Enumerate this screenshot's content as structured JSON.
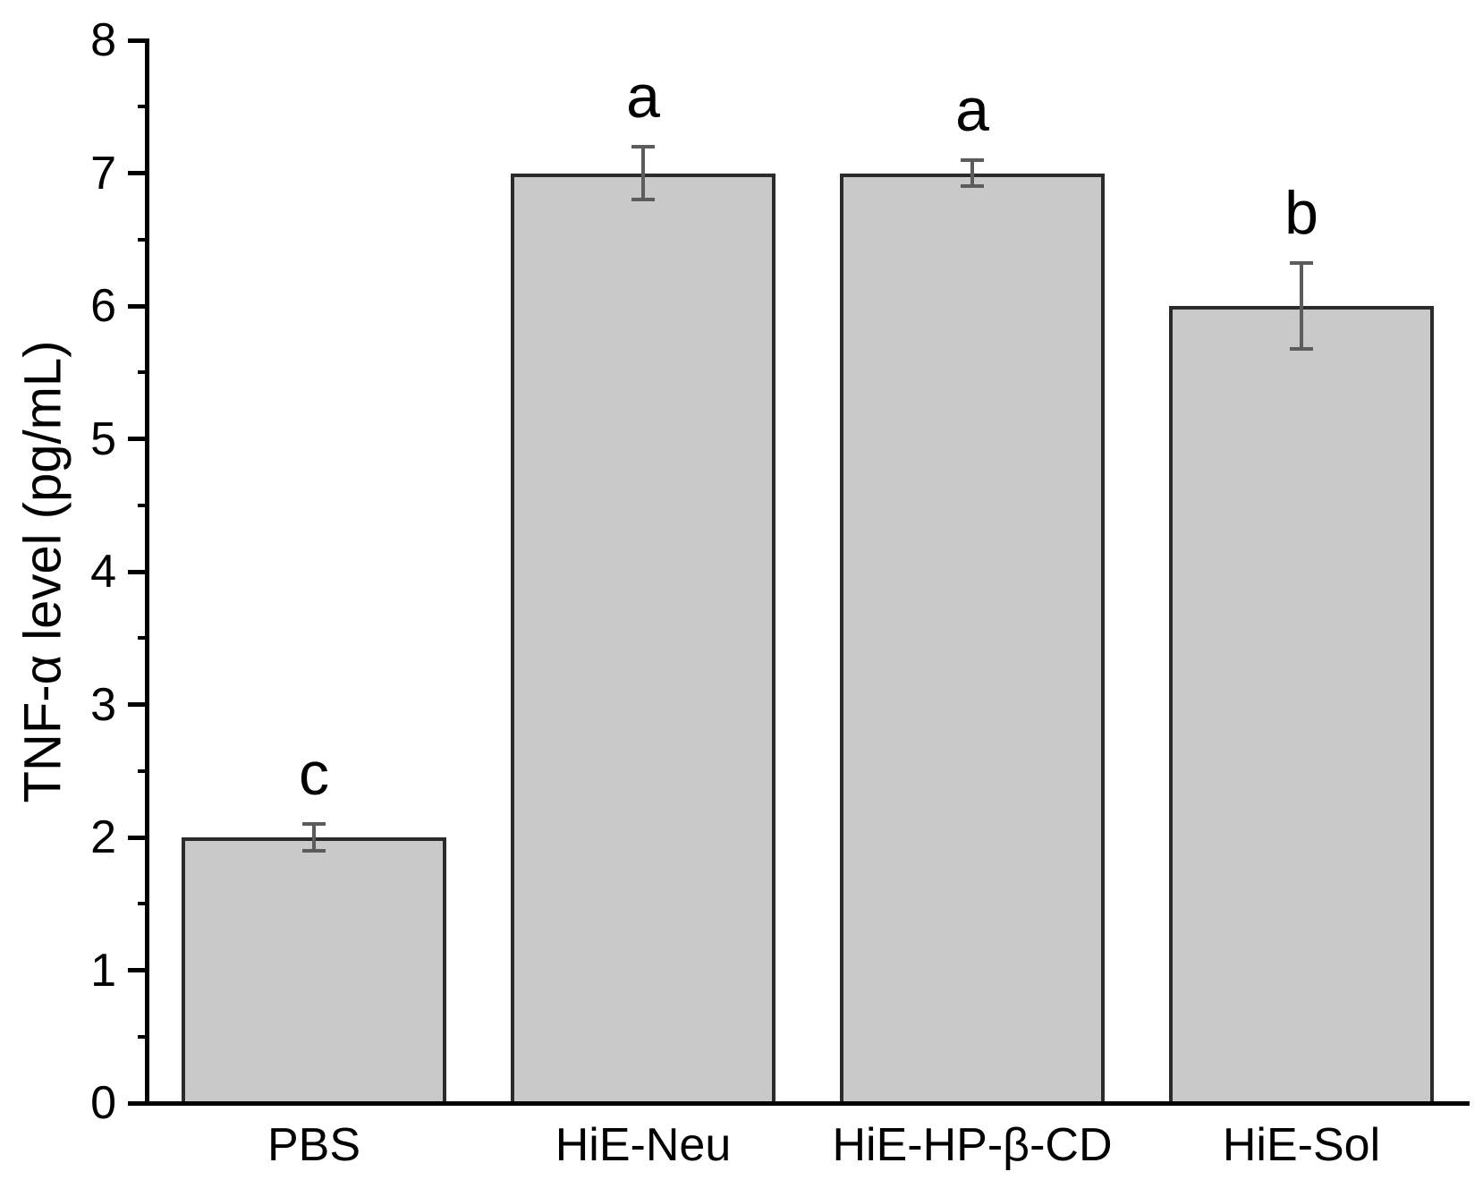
{
  "chart_data": {
    "type": "bar",
    "title": "",
    "xlabel": "",
    "ylabel": "TNF-α level (pg/mL)",
    "ylim": [
      0,
      8
    ],
    "ytick_labels": [
      "0",
      "1",
      "2",
      "3",
      "4",
      "5",
      "6",
      "7",
      "8"
    ],
    "yticks": [
      0,
      1,
      2,
      3,
      4,
      5,
      6,
      7,
      8
    ],
    "minor_yticks": [
      0.5,
      1.5,
      2.5,
      3.5,
      4.5,
      5.5,
      6.5,
      7.5
    ],
    "grid": false,
    "legend_position": "none",
    "categories": [
      "PBS",
      "HiE-Neu",
      "HiE-HP-β-CD",
      "HiE-Sol"
    ],
    "values": [
      2.0,
      7.0,
      7.0,
      6.0
    ],
    "errors": [
      0.1,
      0.2,
      0.1,
      0.32
    ],
    "significance_letters": [
      "c",
      "a",
      "a",
      "b"
    ],
    "colors": {
      "bar_fill": "#c9c9c9",
      "bar_border": "#2b2b2b",
      "error_bar": "#5c5c5c",
      "axis": "#000000",
      "text": "#000000",
      "background": "#ffffff"
    }
  }
}
